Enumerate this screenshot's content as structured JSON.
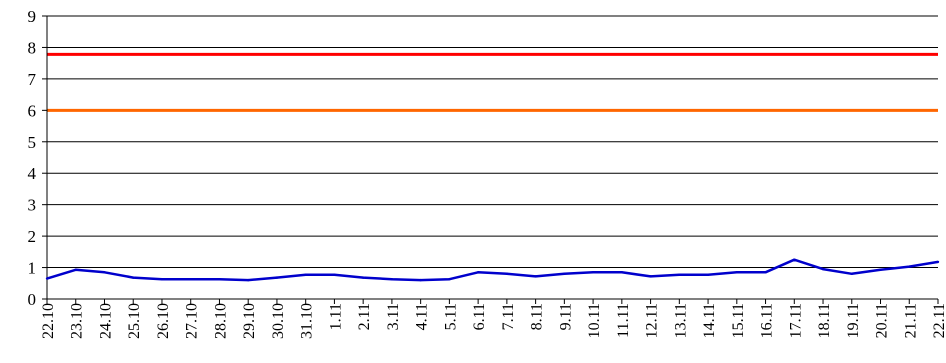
{
  "chart_data": {
    "type": "line",
    "title": "",
    "xlabel": "",
    "ylabel": "",
    "ylim": [
      0,
      9
    ],
    "yticks": [
      "0",
      "1",
      "2",
      "3",
      "4",
      "5",
      "6",
      "7",
      "8",
      "9"
    ],
    "grid": true,
    "legend": "none",
    "categories": [
      "22.10",
      "23.10",
      "24.10",
      "25.10",
      "26.10",
      "27.10",
      "28.10",
      "29.10",
      "30.10",
      "31.10",
      "1.11",
      "2.11",
      "3.11",
      "4.11",
      "5.11",
      "6.11",
      "7.11",
      "8.11",
      "9.11",
      "10.11",
      "11.11",
      "12.11",
      "13.11",
      "14.11",
      "15.11",
      "16.11",
      "17.11",
      "18.11",
      "19.11",
      "20.11",
      "21.11",
      "22.11"
    ],
    "series": [
      {
        "color": "#0000cc",
        "values": [
          0.65,
          0.93,
          0.85,
          0.68,
          0.63,
          0.63,
          0.63,
          0.6,
          0.68,
          0.77,
          0.77,
          0.68,
          0.63,
          0.6,
          0.63,
          0.85,
          0.8,
          0.72,
          0.8,
          0.85,
          0.85,
          0.72,
          0.77,
          0.77,
          0.85,
          0.85,
          1.25,
          0.95,
          0.8,
          0.93,
          1.03,
          1.18
        ]
      }
    ],
    "reference_lines": [
      {
        "value": 7.78,
        "color": "#ff0000"
      },
      {
        "value": 6.0,
        "color": "#ff6600"
      }
    ]
  }
}
